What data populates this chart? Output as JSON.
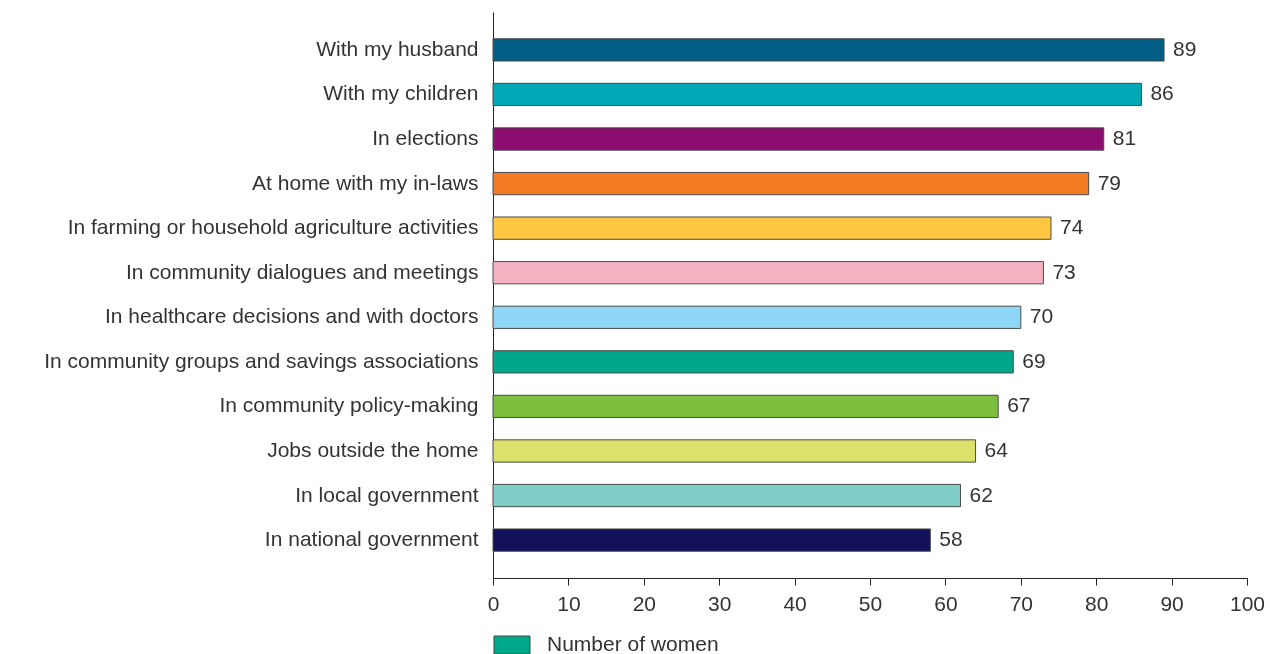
{
  "chart_data": {
    "type": "bar",
    "orientation": "horizontal",
    "categories": [
      "With my husband",
      "With my children",
      "In elections",
      "At home with my in-laws",
      "In farming or household agriculture activities",
      "In community dialogues and meetings",
      "In healthcare decisions and with doctors",
      "In community groups and savings associations",
      "In community policy-making",
      "Jobs outside the home",
      "In local government",
      "In national government"
    ],
    "series": [
      {
        "name": "Number of women",
        "color": "#00a88a",
        "colors": [
          "#035e86",
          "#00a7b5",
          "#8b0d6f",
          "#f47c24",
          "#ffc843",
          "#f4b3c2",
          "#8dd6f5",
          "#00a88a",
          "#7ebe3f",
          "#dbe26a",
          "#7fcdc8",
          "#111059"
        ],
        "values": [
          89,
          86,
          81,
          79,
          74,
          73,
          70,
          69,
          67,
          64,
          62,
          58
        ]
      }
    ],
    "xlim": [
      0,
      100
    ],
    "xticks": [
      0,
      10,
      20,
      30,
      40,
      50,
      60,
      70,
      80,
      90,
      100
    ],
    "data_labels": true,
    "legend": "bottom"
  }
}
